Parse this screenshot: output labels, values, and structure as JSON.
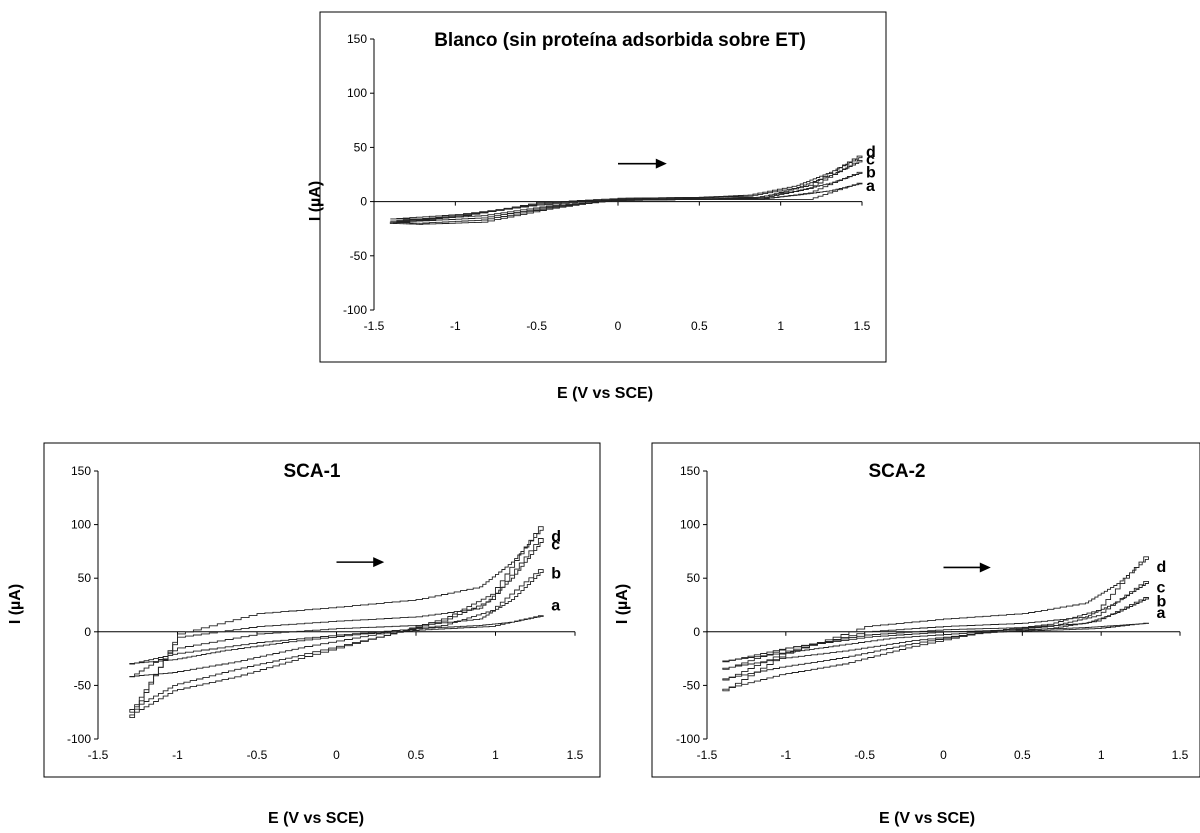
{
  "chart_data": [
    {
      "type": "line",
      "title": "Blanco (sin proteína adsorbida sobre ET)",
      "xlabel": "E (V vs SCE)",
      "ylabel": "I (µA)",
      "xlim": [
        -1.5,
        1.5
      ],
      "ylim": [
        -100,
        150
      ],
      "xticks": [
        "-1.5",
        "-1",
        "-0.5",
        "0",
        "0.5",
        "1",
        "1.5"
      ],
      "yticks": [
        "150",
        "100",
        "50",
        "0",
        "-50",
        "-100"
      ],
      "scan_direction": "positive (arrow pointing right)",
      "grid": false,
      "series": [
        {
          "name": "a",
          "forward": {
            "x": [
              -1.4,
              -1.0,
              -0.5,
              0.0,
              0.5,
              0.9,
              1.1,
              1.3,
              1.5
            ],
            "y": [
              -16,
              -12,
              -3,
              2,
              3,
              3,
              6,
              10,
              17
            ]
          },
          "reverse": {
            "x": [
              1.5,
              1.2,
              0.9,
              0.5,
              0.0,
              -0.4,
              -0.8,
              -1.2,
              -1.4
            ],
            "y": [
              17,
              2,
              2,
              2,
              1,
              -4,
              -13,
              -16,
              -16
            ]
          }
        },
        {
          "name": "b",
          "forward": {
            "x": [
              -1.4,
              -1.0,
              -0.5,
              0.0,
              0.5,
              0.85,
              1.1,
              1.3,
              1.5
            ],
            "y": [
              -18,
              -13,
              -3,
              2,
              3,
              4,
              10,
              17,
              27
            ]
          },
          "reverse": {
            "x": [
              1.5,
              1.2,
              0.9,
              0.5,
              0.0,
              -0.4,
              -0.8,
              -1.2,
              -1.4
            ],
            "y": [
              27,
              8,
              2,
              2,
              1,
              -5,
              -15,
              -18,
              -18
            ]
          }
        },
        {
          "name": "c",
          "forward": {
            "x": [
              -1.4,
              -1.0,
              -0.5,
              0.0,
              0.5,
              0.8,
              1.1,
              1.3,
              1.5
            ],
            "y": [
              -19,
              -14,
              -2,
              3,
              4,
              5,
              13,
              24,
              38
            ]
          },
          "reverse": {
            "x": [
              1.5,
              1.2,
              0.9,
              0.5,
              0.0,
              -0.4,
              -0.8,
              -1.2,
              -1.4
            ],
            "y": [
              38,
              12,
              3,
              2,
              1,
              -6,
              -17,
              -20,
              -19
            ]
          }
        },
        {
          "name": "d",
          "forward": {
            "x": [
              -1.4,
              -1.0,
              -0.5,
              0.0,
              0.5,
              0.8,
              1.1,
              1.3,
              1.5
            ],
            "y": [
              -20,
              -14,
              -1,
              3,
              4,
              6,
              15,
              27,
              42
            ]
          },
          "reverse": {
            "x": [
              1.5,
              1.2,
              0.9,
              0.5,
              0.0,
              -0.4,
              -0.8,
              -1.2,
              -1.4
            ],
            "y": [
              42,
              15,
              4,
              3,
              2,
              -7,
              -19,
              -21,
              -20
            ]
          }
        }
      ]
    },
    {
      "type": "line",
      "title": "SCA-1",
      "xlabel": "E (V vs SCE)",
      "ylabel": "I (µA)",
      "xlim": [
        -1.5,
        1.5
      ],
      "ylim": [
        -100,
        150
      ],
      "xticks": [
        "-1.5",
        "-1",
        "-0.5",
        "0",
        "0.5",
        "1",
        "1.5"
      ],
      "yticks": [
        "150",
        "100",
        "50",
        "0",
        "-50",
        "-100"
      ],
      "scan_direction": "positive (arrow pointing right)",
      "grid": false,
      "series": [
        {
          "name": "a",
          "forward": {
            "x": [
              -1.3,
              -1.0,
              -0.5,
              0.0,
              0.5,
              0.9,
              1.1,
              1.3
            ],
            "y": [
              -30,
              -20,
              -10,
              -3,
              3,
              6,
              9,
              15
            ]
          },
          "reverse": {
            "x": [
              1.3,
              1.0,
              0.6,
              0.2,
              -0.3,
              -0.7,
              -1.0,
              -1.3
            ],
            "y": [
              15,
              5,
              2,
              -2,
              -10,
              -18,
              -26,
              -30
            ]
          }
        },
        {
          "name": "b",
          "forward": {
            "x": [
              -1.3,
              -1.0,
              -0.5,
              0.0,
              0.5,
              0.9,
              1.1,
              1.3
            ],
            "y": [
              -42,
              -15,
              -2,
              3,
              6,
              12,
              30,
              58
            ]
          },
          "reverse": {
            "x": [
              1.3,
              1.0,
              0.7,
              0.3,
              -0.2,
              -0.6,
              -1.0,
              -1.3
            ],
            "y": [
              58,
              20,
              6,
              -2,
              -15,
              -28,
              -38,
              -42
            ]
          }
        },
        {
          "name": "c",
          "forward": {
            "x": [
              -1.3,
              -1.0,
              -0.5,
              0.0,
              0.5,
              0.9,
              1.1,
              1.3
            ],
            "y": [
              -75,
              -5,
              5,
              10,
              14,
              22,
              50,
              87
            ]
          },
          "reverse": {
            "x": [
              1.3,
              1.0,
              0.7,
              0.3,
              -0.2,
              -0.6,
              -1.0,
              -1.3
            ],
            "y": [
              87,
              30,
              10,
              -5,
              -22,
              -35,
              -50,
              -75
            ]
          }
        },
        {
          "name": "d",
          "forward": {
            "x": [
              -1.3,
              -1.0,
              -0.5,
              0.0,
              0.5,
              0.9,
              1.1,
              1.3
            ],
            "y": [
              -80,
              -2,
              17,
              23,
              30,
              42,
              65,
              98
            ]
          },
          "reverse": {
            "x": [
              1.3,
              1.0,
              0.7,
              0.3,
              -0.2,
              -0.6,
              -1.0,
              -1.3
            ],
            "y": [
              98,
              35,
              12,
              -5,
              -25,
              -42,
              -55,
              -80
            ]
          }
        }
      ]
    },
    {
      "type": "line",
      "title": "SCA-2",
      "xlabel": "E (V vs SCE)",
      "ylabel": "I (µA)",
      "xlim": [
        -1.5,
        1.5
      ],
      "ylim": [
        -100,
        150
      ],
      "xticks": [
        "-1.5",
        "-1",
        "-0.5",
        "0",
        "0.5",
        "1",
        "1.5"
      ],
      "yticks": [
        "150",
        "100",
        "50",
        "0",
        "-50",
        "-100"
      ],
      "scan_direction": "positive (arrow pointing right)",
      "grid": false,
      "series": [
        {
          "name": "a",
          "forward": {
            "x": [
              -1.4,
              -1.0,
              -0.5,
              0.0,
              0.5,
              0.9,
              1.1,
              1.3
            ],
            "y": [
              -28,
              -15,
              -5,
              0,
              2,
              4,
              6,
              8
            ]
          },
          "reverse": {
            "x": [
              1.3,
              1.0,
              0.6,
              0.2,
              -0.3,
              -0.7,
              -1.0,
              -1.4
            ],
            "y": [
              8,
              3,
              1,
              -1,
              -6,
              -14,
              -20,
              -28
            ]
          }
        },
        {
          "name": "b",
          "forward": {
            "x": [
              -1.4,
              -1.0,
              -0.5,
              0.0,
              0.5,
              0.9,
              1.1,
              1.3
            ],
            "y": [
              -35,
              -15,
              -3,
              2,
              4,
              8,
              18,
              32
            ]
          },
          "reverse": {
            "x": [
              1.3,
              1.0,
              0.7,
              0.3,
              -0.2,
              -0.6,
              -1.0,
              -1.4
            ],
            "y": [
              32,
              10,
              3,
              -1,
              -9,
              -18,
              -25,
              -35
            ]
          }
        },
        {
          "name": "c",
          "forward": {
            "x": [
              -1.4,
              -1.0,
              -0.5,
              0.0,
              0.5,
              0.9,
              1.1,
              1.3
            ],
            "y": [
              -45,
              -18,
              0,
              5,
              8,
              14,
              28,
              47
            ]
          },
          "reverse": {
            "x": [
              1.3,
              1.0,
              0.7,
              0.3,
              -0.2,
              -0.6,
              -1.0,
              -1.4
            ],
            "y": [
              47,
              15,
              5,
              0,
              -12,
              -24,
              -33,
              -45
            ]
          }
        },
        {
          "name": "d",
          "forward": {
            "x": [
              -1.4,
              -1.0,
              -0.5,
              0.0,
              0.5,
              0.9,
              1.1,
              1.3
            ],
            "y": [
              -55,
              -20,
              5,
              12,
              17,
              27,
              45,
              70
            ]
          },
          "reverse": {
            "x": [
              1.3,
              1.0,
              0.7,
              0.3,
              -0.2,
              -0.6,
              -1.0,
              -1.4
            ],
            "y": [
              70,
              20,
              7,
              0,
              -15,
              -30,
              -40,
              -55
            ]
          }
        }
      ]
    }
  ]
}
